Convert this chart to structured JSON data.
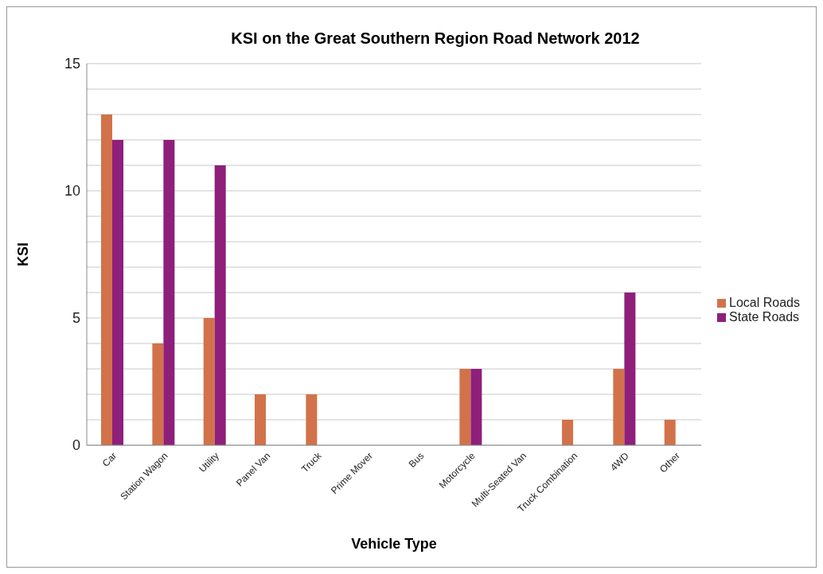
{
  "chart_data": {
    "type": "bar",
    "title": "KSI on the Great Southern Region Road Network 2012",
    "xlabel": "Vehicle Type",
    "ylabel": "KSI",
    "categories": [
      "Car",
      "Station Wagon",
      "Utility",
      "Panel Van",
      "Truck",
      "Prime Mover",
      "Bus",
      "Motorcycle",
      "Multi-Seated Van",
      "Truck Combination",
      "4WD",
      "Other"
    ],
    "series": [
      {
        "name": "Local Roads",
        "color": "#d2724a",
        "values": [
          13,
          4,
          5,
          2,
          2,
          0,
          0,
          3,
          0,
          1,
          3,
          1
        ]
      },
      {
        "name": "State Roads",
        "color": "#8e1f7a",
        "values": [
          12,
          12,
          11,
          0,
          0,
          0,
          0,
          3,
          0,
          0,
          6,
          0
        ]
      }
    ],
    "ylim": [
      0,
      15
    ],
    "yticks": [
      0,
      {
        "value": 1,
        "label": null
      },
      {
        "value": 2,
        "label": null
      },
      {
        "value": 3,
        "label": null
      },
      {
        "value": 4,
        "label": null
      },
      5,
      {
        "value": 6,
        "label": null
      },
      {
        "value": 7,
        "label": null
      },
      {
        "value": 8,
        "label": null
      },
      {
        "value": 9,
        "label": null
      },
      10,
      {
        "value": 11,
        "label": null
      },
      {
        "value": 12,
        "label": null
      },
      {
        "value": 13,
        "label": null
      },
      {
        "value": 14,
        "label": null
      },
      15
    ],
    "grid": "y",
    "legend": "right"
  }
}
